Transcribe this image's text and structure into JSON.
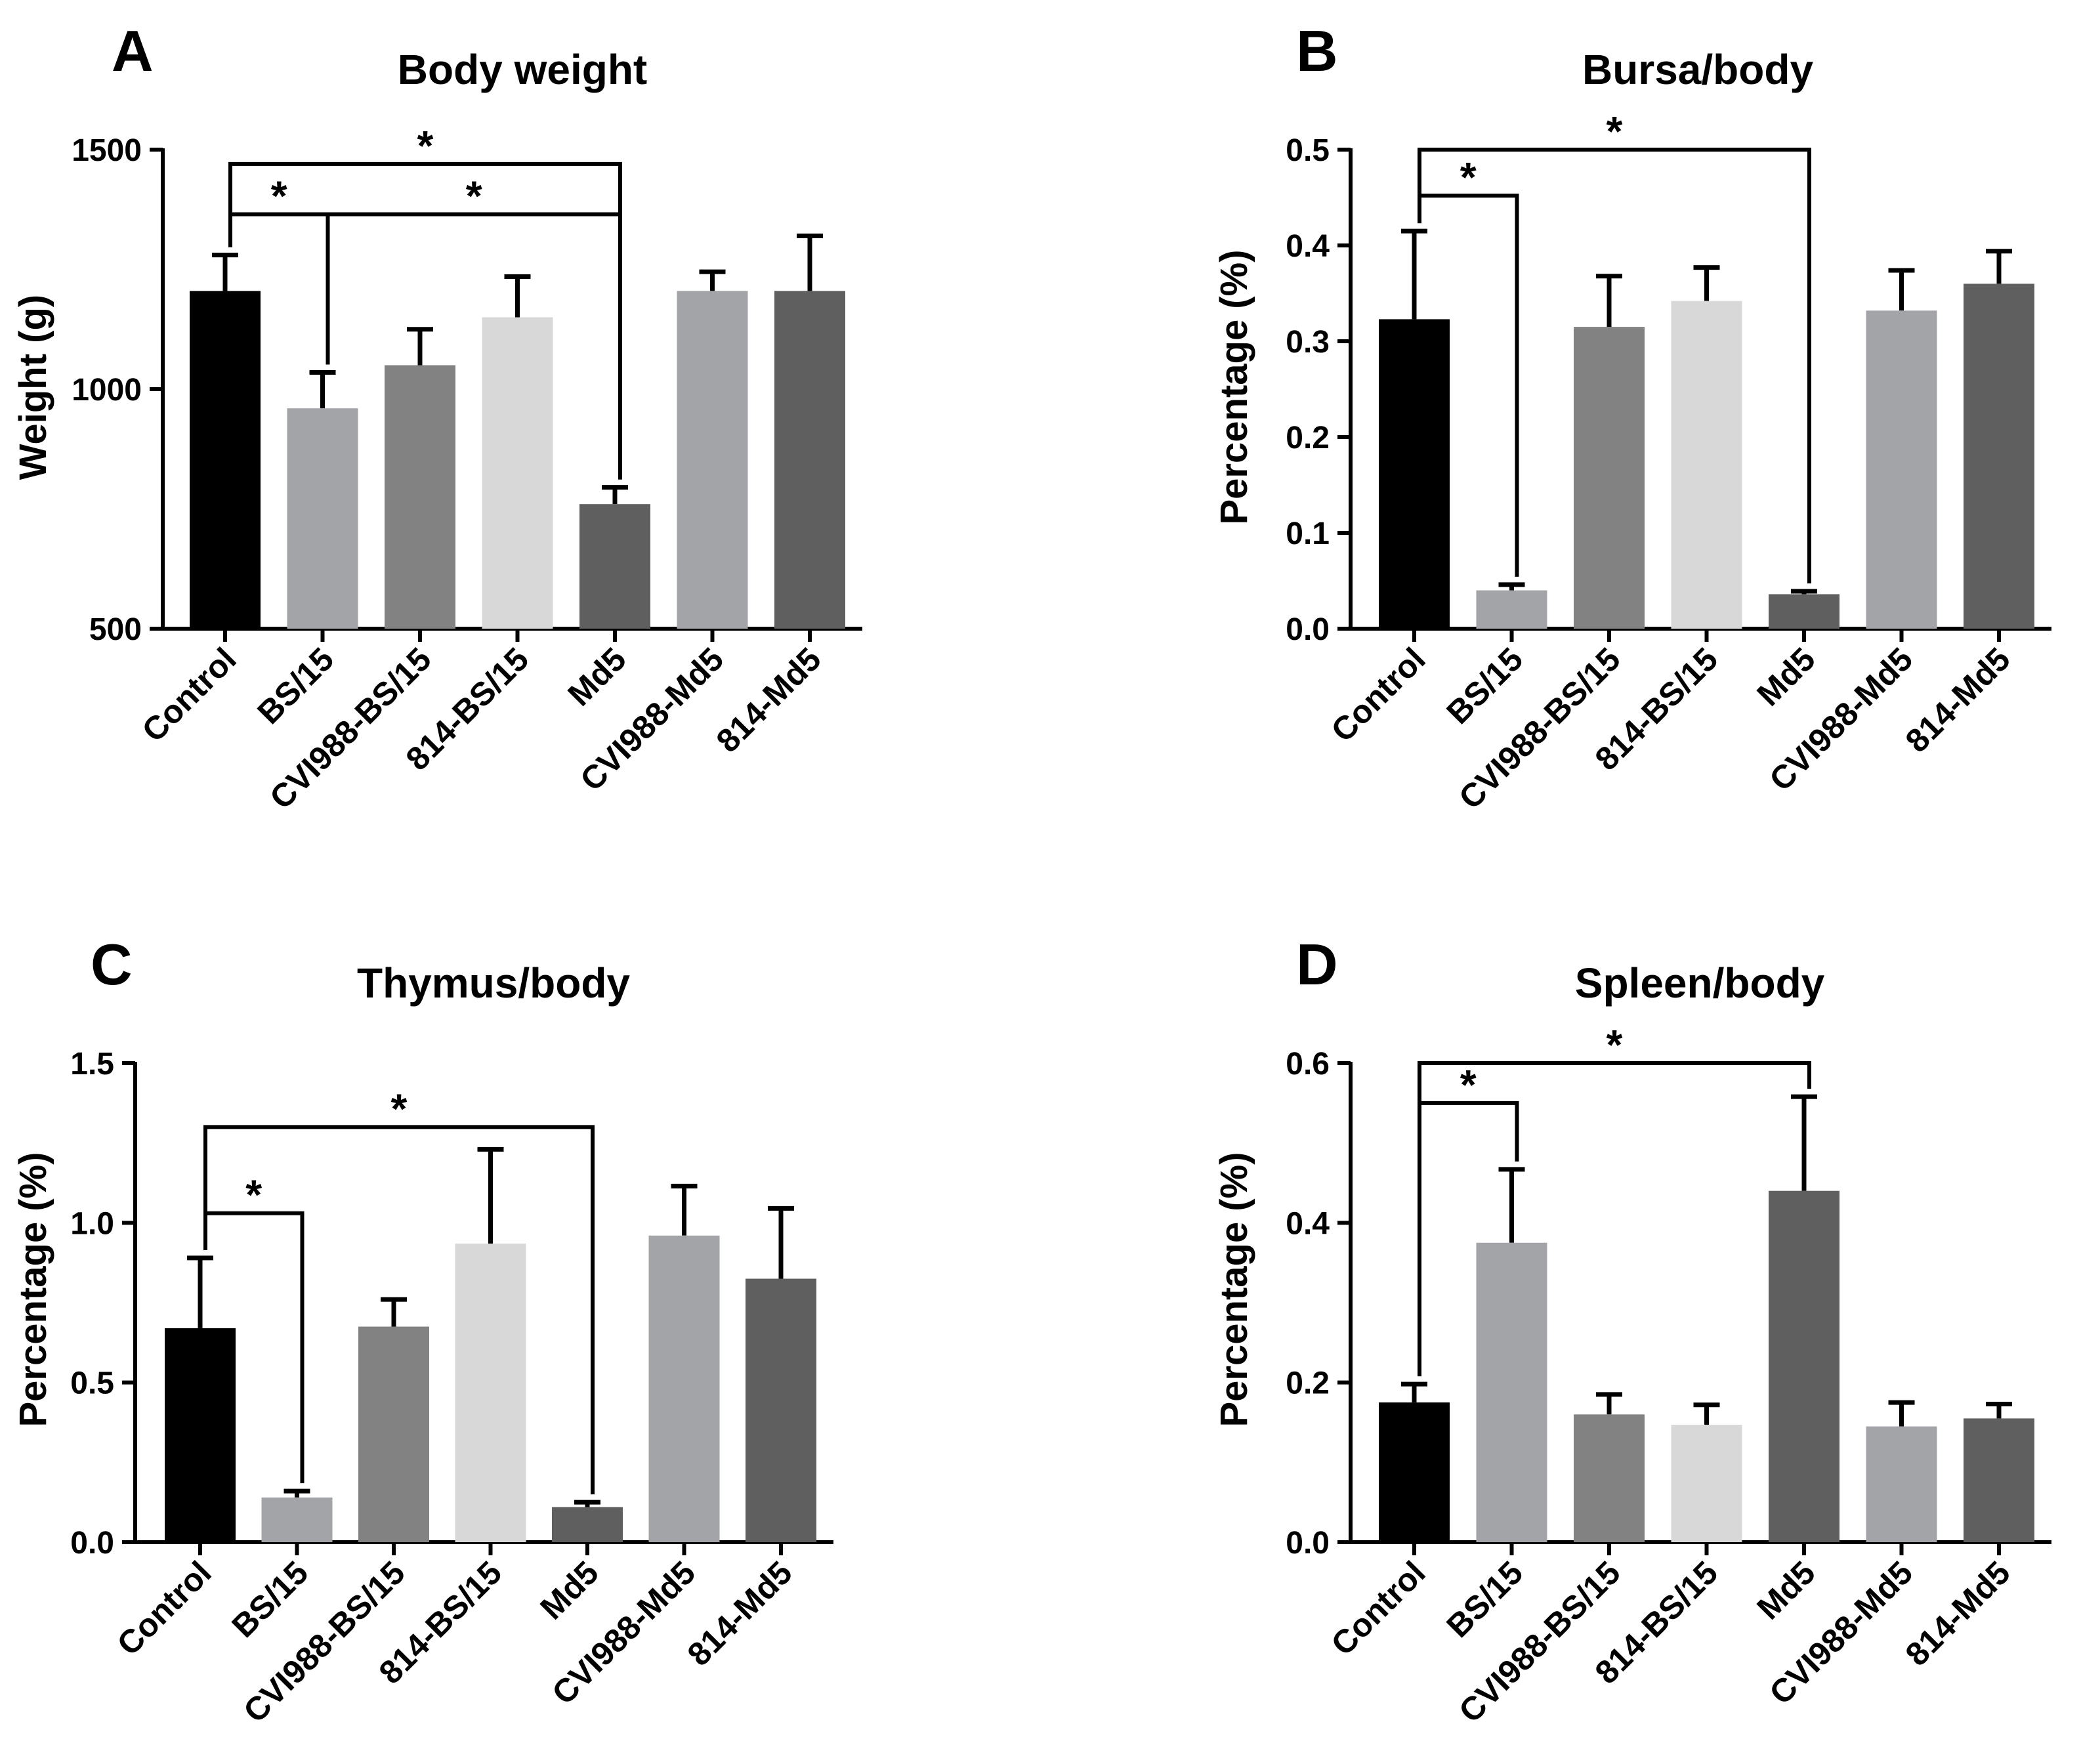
{
  "figure": {
    "colors": [
      "#000000",
      "#a3a4a8",
      "#828282",
      "#d8d8d8",
      "#5f5f5f",
      "#a3a4a8",
      "#5f5f5f"
    ]
  },
  "chart_data": [
    {
      "type": "bar",
      "panel": "A",
      "title": "Body weight",
      "xlabel": "",
      "ylabel": "Weight (g)",
      "ylim": [
        500,
        1500
      ],
      "yticks": [
        500,
        1000,
        1500
      ],
      "ytick_labels": [
        "500",
        "1000",
        "1500"
      ],
      "categories": [
        "Control",
        "BS/15",
        "CVI988-BS/15",
        "814-BS/15",
        "Md5",
        "CVI988-Md5",
        "814-Md5"
      ],
      "values": [
        1205,
        960,
        1050,
        1150,
        760,
        1205,
        1205
      ],
      "errors": [
        75,
        75,
        75,
        85,
        35,
        40,
        115
      ],
      "significance": [
        {
          "from": 0,
          "to": 4,
          "y": 1470,
          "label": "*"
        },
        {
          "from": 0,
          "to": 1,
          "y": 1365,
          "label": "*"
        },
        {
          "from": 1,
          "to": 4,
          "y": 1365,
          "label": "*"
        }
      ]
    },
    {
      "type": "bar",
      "panel": "B",
      "title": "Bursa/body",
      "xlabel": "",
      "ylabel": "Percentage (%)",
      "ylim": [
        0,
        0.5
      ],
      "yticks": [
        0,
        0.1,
        0.2,
        0.3,
        0.4,
        0.5
      ],
      "ytick_labels": [
        "0.0",
        "0.1",
        "0.2",
        "0.3",
        "0.4",
        "0.5"
      ],
      "categories": [
        "Control",
        "BS/15",
        "CVI988-BS/15",
        "814-BS/15",
        "Md5",
        "CVI988-Md5",
        "814-Md5"
      ],
      "values": [
        0.323,
        0.04,
        0.315,
        0.342,
        0.036,
        0.332,
        0.36
      ],
      "errors": [
        0.092,
        0.006,
        0.053,
        0.035,
        0.003,
        0.042,
        0.034
      ],
      "significance": [
        {
          "from": 0,
          "to": 4,
          "y": 0.5,
          "label": "*"
        },
        {
          "from": 0,
          "to": 1,
          "y": 0.452,
          "label": "*"
        }
      ]
    },
    {
      "type": "bar",
      "panel": "C",
      "title": "Thymus/body",
      "xlabel": "",
      "ylabel": "Percentage (%)",
      "ylim": [
        0,
        1.5
      ],
      "yticks": [
        0,
        0.5,
        1.0,
        1.5
      ],
      "ytick_labels": [
        "0.0",
        "0.5",
        "1.0",
        "1.5"
      ],
      "categories": [
        "Control",
        "BS/15",
        "CVI988-BS/15",
        "814-BS/15",
        "Md5",
        "CVI988-Md5",
        "814-Md5"
      ],
      "values": [
        0.67,
        0.14,
        0.675,
        0.935,
        0.11,
        0.96,
        0.825
      ],
      "errors": [
        0.22,
        0.02,
        0.085,
        0.295,
        0.015,
        0.155,
        0.22
      ],
      "significance": [
        {
          "from": 0,
          "to": 4,
          "y": 1.3,
          "label": "*"
        },
        {
          "from": 0,
          "to": 1,
          "y": 1.03,
          "label": "*"
        }
      ]
    },
    {
      "type": "bar",
      "panel": "D",
      "title": "Spleen/body",
      "xlabel": "",
      "ylabel": "Percentage (%)",
      "ylim": [
        0,
        0.6
      ],
      "yticks": [
        0,
        0.2,
        0.4,
        0.6
      ],
      "ytick_labels": [
        "0.0",
        "0.2",
        "0.4",
        "0.6"
      ],
      "categories": [
        "Control",
        "BS/15",
        "CVI988-BS/15",
        "814-BS/15",
        "Md5",
        "CVI988-Md5",
        "814-Md5"
      ],
      "values": [
        0.175,
        0.375,
        0.16,
        0.147,
        0.44,
        0.145,
        0.155
      ],
      "errors": [
        0.023,
        0.092,
        0.025,
        0.025,
        0.118,
        0.03,
        0.018
      ],
      "significance": [
        {
          "from": 0,
          "to": 4,
          "y": 0.6,
          "label": "*"
        },
        {
          "from": 0,
          "to": 1,
          "y": 0.55,
          "label": "*"
        }
      ]
    }
  ]
}
